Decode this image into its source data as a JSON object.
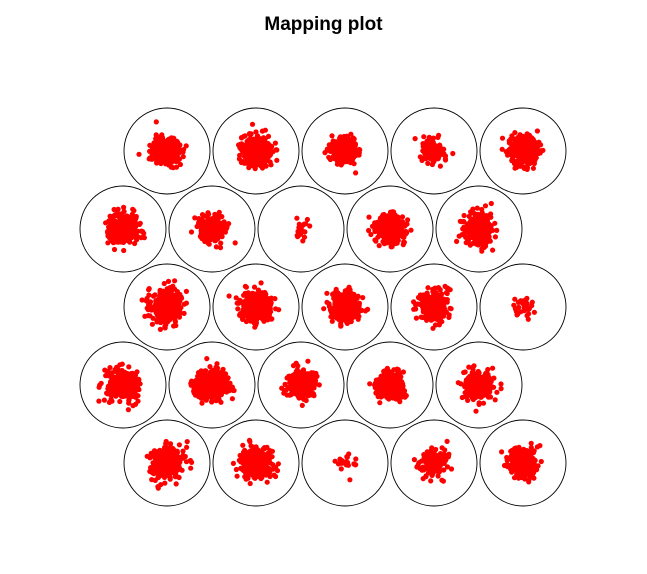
{
  "chart_data": {
    "type": "scatter",
    "title": "Mapping plot",
    "xlabel": "",
    "ylabel": "",
    "grid": false,
    "legend": "none",
    "layout": "hexagonal",
    "rows": 5,
    "columns": 5,
    "point_color": "#ff0000",
    "circle_color": "#000000",
    "cells": [
      {
        "row": 1,
        "col": 1,
        "count": 380,
        "spread": 0.26
      },
      {
        "row": 1,
        "col": 2,
        "count": 420,
        "spread": 0.26
      },
      {
        "row": 1,
        "col": 3,
        "count": 420,
        "spread": 0.24
      },
      {
        "row": 1,
        "col": 4,
        "count": 110,
        "spread": 0.22
      },
      {
        "row": 1,
        "col": 5,
        "count": 400,
        "spread": 0.26
      },
      {
        "row": 2,
        "col": 1,
        "count": 380,
        "spread": 0.28
      },
      {
        "row": 2,
        "col": 2,
        "count": 260,
        "spread": 0.24
      },
      {
        "row": 2,
        "col": 3,
        "count": 25,
        "spread": 0.22
      },
      {
        "row": 2,
        "col": 4,
        "count": 380,
        "spread": 0.26
      },
      {
        "row": 2,
        "col": 5,
        "count": 300,
        "spread": 0.28
      },
      {
        "row": 3,
        "col": 1,
        "count": 340,
        "spread": 0.28
      },
      {
        "row": 3,
        "col": 2,
        "count": 380,
        "spread": 0.28
      },
      {
        "row": 3,
        "col": 3,
        "count": 420,
        "spread": 0.26
      },
      {
        "row": 3,
        "col": 4,
        "count": 300,
        "spread": 0.26
      },
      {
        "row": 3,
        "col": 5,
        "count": 30,
        "spread": 0.2
      },
      {
        "row": 4,
        "col": 1,
        "count": 360,
        "spread": 0.28
      },
      {
        "row": 4,
        "col": 2,
        "count": 380,
        "spread": 0.28
      },
      {
        "row": 4,
        "col": 3,
        "count": 300,
        "spread": 0.26
      },
      {
        "row": 4,
        "col": 4,
        "count": 340,
        "spread": 0.26
      },
      {
        "row": 4,
        "col": 5,
        "count": 320,
        "spread": 0.26
      },
      {
        "row": 5,
        "col": 1,
        "count": 360,
        "spread": 0.28
      },
      {
        "row": 5,
        "col": 2,
        "count": 440,
        "spread": 0.26
      },
      {
        "row": 5,
        "col": 3,
        "count": 22,
        "spread": 0.2
      },
      {
        "row": 5,
        "col": 4,
        "count": 160,
        "spread": 0.26
      },
      {
        "row": 5,
        "col": 5,
        "count": 340,
        "spread": 0.26
      }
    ]
  }
}
